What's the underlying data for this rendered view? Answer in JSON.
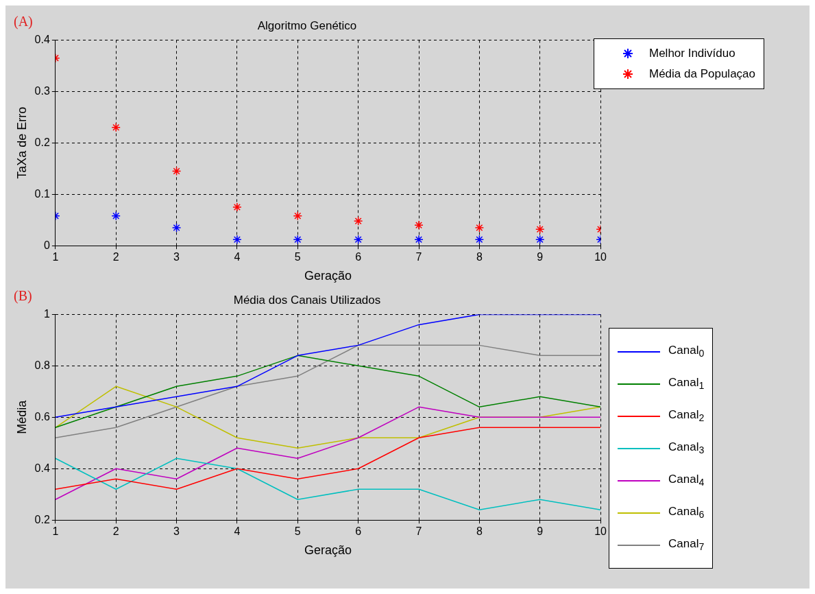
{
  "chart_data": [
    {
      "type": "scatter",
      "title": "Algoritmo Genético",
      "xlabel": "Geração",
      "ylabel": "TaXa de Erro",
      "annotations": [
        "(A)"
      ],
      "x": [
        1,
        2,
        3,
        4,
        5,
        6,
        7,
        8,
        9,
        10
      ],
      "xlim": [
        1,
        10
      ],
      "xticks": [
        1,
        2,
        3,
        4,
        5,
        6,
        7,
        8,
        9,
        10
      ],
      "ylim": [
        0,
        0.4
      ],
      "yticks": [
        0,
        0.1,
        0.2,
        0.3,
        0.4
      ],
      "grid": true,
      "legend": "top right",
      "marker": "cross",
      "series": [
        {
          "name": "Melhor Indivíduo",
          "color": "#0000ff",
          "values": [
            0.058,
            0.058,
            0.035,
            0.012,
            0.012,
            0.012,
            0.012,
            0.012,
            0.012,
            0.012
          ]
        },
        {
          "name": "Média da Populaçao",
          "color": "#ff0000",
          "values": [
            0.365,
            0.23,
            0.145,
            0.075,
            0.058,
            0.048,
            0.04,
            0.035,
            0.032,
            0.032
          ]
        }
      ]
    },
    {
      "type": "line",
      "title": "Média dos Canais Utilizados",
      "xlabel": "Geração",
      "ylabel": "Média",
      "annotations": [
        "(B)"
      ],
      "x": [
        1,
        2,
        3,
        4,
        5,
        6,
        7,
        8,
        9,
        10
      ],
      "xlim": [
        1,
        10
      ],
      "xticks": [
        1,
        2,
        3,
        4,
        5,
        6,
        7,
        8,
        9,
        10
      ],
      "ylim": [
        0.2,
        1
      ],
      "yticks": [
        0.2,
        0.4,
        0.6,
        0.8,
        1
      ],
      "grid": true,
      "legend": "right",
      "marker": "none",
      "line_style": "solid",
      "series": [
        {
          "name": "Canal$_{0}$",
          "color": "#0000ff",
          "values": [
            0.6,
            0.64,
            0.68,
            0.72,
            0.84,
            0.88,
            0.96,
            1,
            1,
            1
          ]
        },
        {
          "name": "Canal$_{1}$",
          "color": "#008000",
          "values": [
            0.56,
            0.64,
            0.72,
            0.76,
            0.84,
            0.8,
            0.76,
            0.64,
            0.68,
            0.64
          ]
        },
        {
          "name": "Canal$_{2}$",
          "color": "#ff0000",
          "values": [
            0.32,
            0.36,
            0.32,
            0.4,
            0.36,
            0.4,
            0.52,
            0.56,
            0.56,
            0.56
          ]
        },
        {
          "name": "Canal$_{3}$",
          "color": "#00bfbf",
          "values": [
            0.44,
            0.32,
            0.44,
            0.4,
            0.28,
            0.32,
            0.32,
            0.24,
            0.28,
            0.24
          ]
        },
        {
          "name": "Canal$_{4}$",
          "color": "#bf00bf",
          "values": [
            0.28,
            0.4,
            0.36,
            0.48,
            0.44,
            0.52,
            0.64,
            0.6,
            0.6,
            0.6
          ]
        },
        {
          "name": "Canal$_{6}$",
          "color": "#bfbf00",
          "values": [
            0.56,
            0.72,
            0.64,
            0.52,
            0.48,
            0.52,
            0.52,
            0.6,
            0.6,
            0.64
          ]
        },
        {
          "name": "Canal$_{7}$",
          "color": "#808080",
          "values": [
            0.52,
            0.56,
            0.64,
            0.72,
            0.76,
            0.88,
            0.88,
            0.88,
            0.84,
            0.84
          ]
        }
      ]
    }
  ]
}
